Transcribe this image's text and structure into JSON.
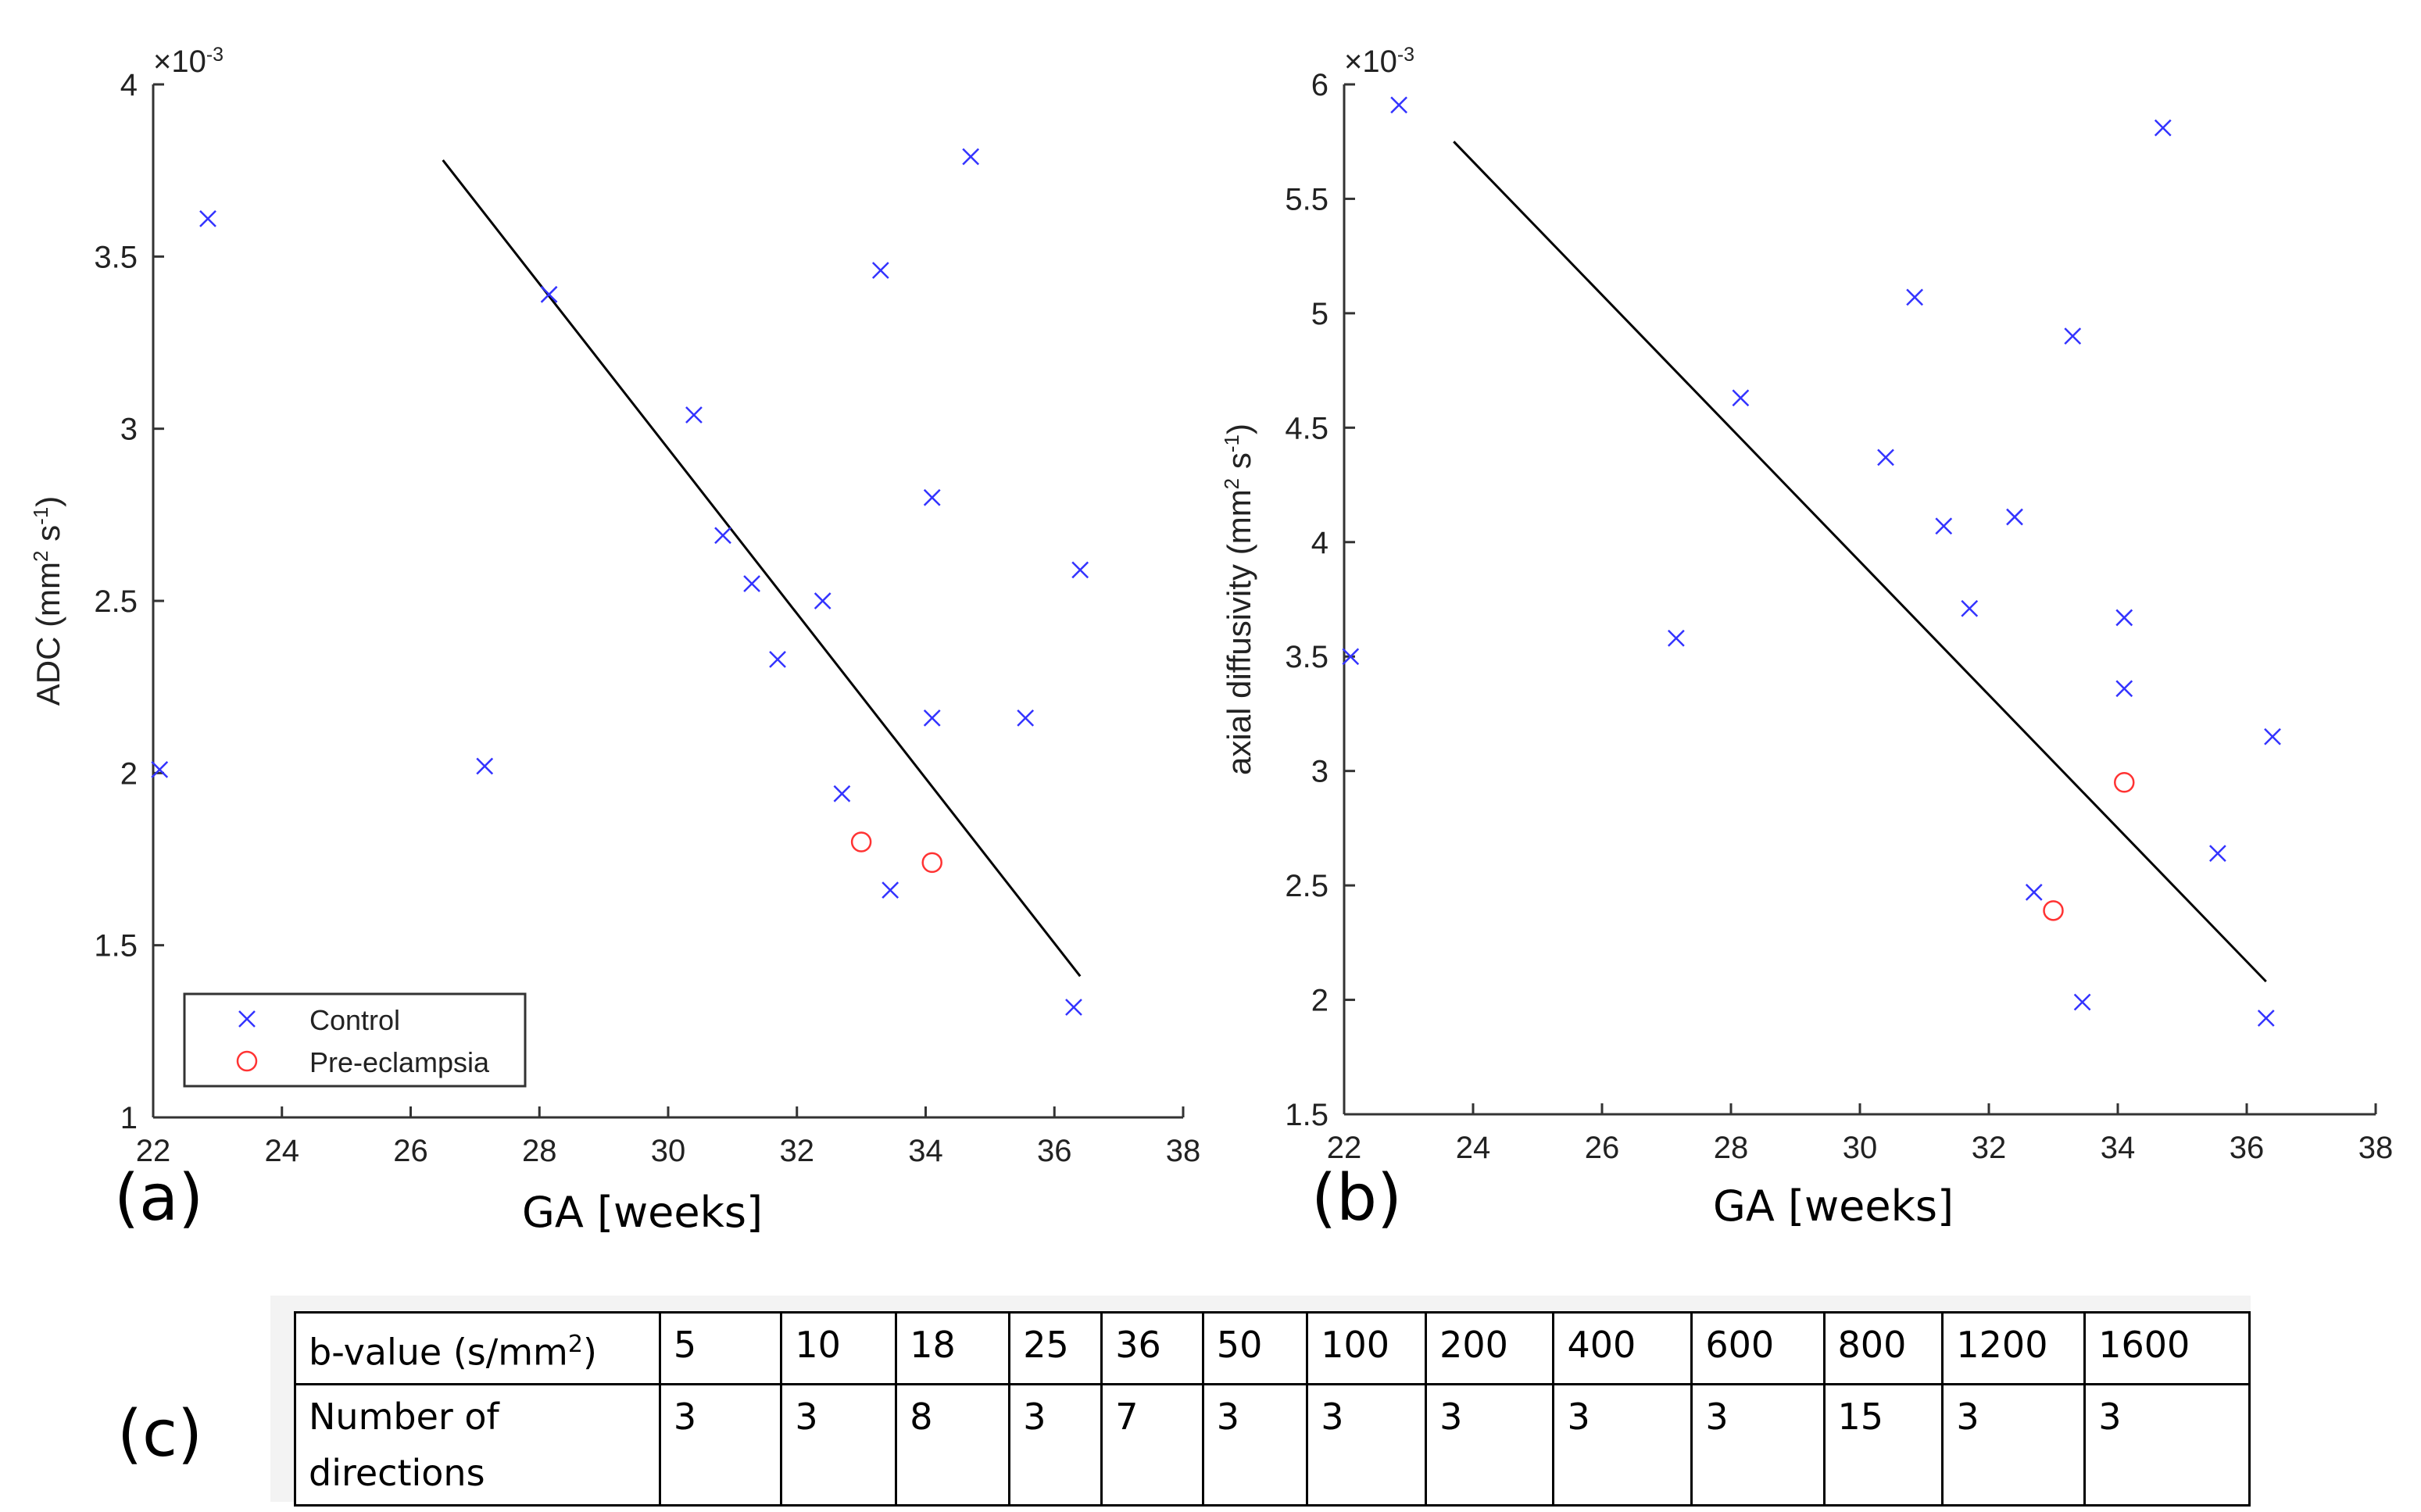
{
  "figure": {
    "label_a": "(a)",
    "label_b": "(b)",
    "label_c": "(c)",
    "xaxis_title": "GA [weeks]"
  },
  "legend": {
    "control": "Control",
    "preeclampsia": "Pre-eclampsia"
  },
  "colors": {
    "control": "#3333ff",
    "preeclampsia": "#ff3333",
    "fit": "#000000"
  },
  "chart_data": [
    {
      "id": "a",
      "type": "scatter",
      "ylabel": "ADC (mm2 s-1)",
      "ylabel_parts": [
        "ADC (mm",
        "2",
        " s",
        "-1",
        ")"
      ],
      "exponent": "×10-3",
      "exponent_parts": [
        "×10",
        "-3"
      ],
      "xlim": [
        22,
        38
      ],
      "ylim": [
        1,
        4
      ],
      "xticks": [
        22,
        24,
        26,
        28,
        30,
        32,
        34,
        36,
        38
      ],
      "yticks": [
        1,
        1.5,
        2,
        2.5,
        3,
        3.5,
        4
      ],
      "ytick_labels": [
        "1",
        "1.5",
        "2",
        "2.5",
        "3",
        "3.5",
        "4"
      ],
      "series": [
        {
          "name": "Control",
          "marker": "x",
          "points": [
            [
              22.1,
              2.01
            ],
            [
              22.85,
              3.61
            ],
            [
              27.15,
              2.02
            ],
            [
              28.15,
              3.39
            ],
            [
              30.4,
              3.04
            ],
            [
              30.85,
              2.69
            ],
            [
              31.3,
              2.55
            ],
            [
              31.7,
              2.33
            ],
            [
              32.4,
              2.5
            ],
            [
              32.7,
              1.94
            ],
            [
              33.3,
              3.46
            ],
            [
              33.45,
              1.66
            ],
            [
              34.1,
              2.8
            ],
            [
              34.1,
              2.16
            ],
            [
              34.7,
              3.79
            ],
            [
              35.55,
              2.16
            ],
            [
              36.3,
              1.32
            ],
            [
              36.4,
              2.59
            ]
          ]
        },
        {
          "name": "Pre-eclampsia",
          "marker": "o",
          "points": [
            [
              33.0,
              1.8
            ],
            [
              34.1,
              1.74
            ]
          ]
        }
      ],
      "fit_line": [
        [
          26.5,
          3.78
        ],
        [
          36.4,
          1.41
        ]
      ],
      "legend_position": "bottom-left"
    },
    {
      "id": "b",
      "type": "scatter",
      "ylabel": "axial diffusivity (mm2 s-1)",
      "ylabel_parts": [
        "axial diffusivity (mm",
        "2",
        " s",
        "-1",
        ")"
      ],
      "exponent": "×10-3",
      "exponent_parts": [
        "×10",
        "-3"
      ],
      "xlim": [
        22,
        38
      ],
      "ylim": [
        1.5,
        6
      ],
      "xticks": [
        22,
        24,
        26,
        28,
        30,
        32,
        34,
        36,
        38
      ],
      "yticks": [
        1.5,
        2,
        2.5,
        3,
        3.5,
        4,
        4.5,
        5,
        5.5,
        6
      ],
      "ytick_labels": [
        "1.5",
        "2",
        "2.5",
        "3",
        "3.5",
        "4",
        "4.5",
        "5",
        "5.5",
        "6"
      ],
      "series": [
        {
          "name": "Control",
          "marker": "x",
          "points": [
            [
              22.1,
              3.5
            ],
            [
              22.85,
              5.91
            ],
            [
              27.15,
              3.58
            ],
            [
              28.15,
              4.63
            ],
            [
              30.4,
              4.37
            ],
            [
              30.85,
              5.07
            ],
            [
              31.3,
              4.07
            ],
            [
              31.7,
              3.71
            ],
            [
              32.4,
              4.11
            ],
            [
              32.7,
              2.47
            ],
            [
              33.3,
              4.9
            ],
            [
              33.45,
              1.99
            ],
            [
              34.1,
              3.67
            ],
            [
              34.1,
              3.36
            ],
            [
              34.7,
              5.81
            ],
            [
              35.55,
              2.64
            ],
            [
              36.3,
              1.92
            ],
            [
              36.4,
              3.15
            ]
          ]
        },
        {
          "name": "Pre-eclampsia",
          "marker": "o",
          "points": [
            [
              33.0,
              2.39
            ],
            [
              34.1,
              2.95
            ]
          ]
        }
      ],
      "fit_line": [
        [
          23.7,
          5.75
        ],
        [
          36.3,
          2.08
        ]
      ]
    },
    {
      "id": "c",
      "type": "table",
      "row_headers": [
        "b-value (s/mm2)",
        "Number of directions"
      ],
      "row_header_parts": [
        "b-value (s/mm",
        "2",
        ")"
      ],
      "row2_header_lines": [
        "Number of",
        "directions"
      ],
      "b_values": [
        "5",
        "10",
        "18",
        "25",
        "36",
        "50",
        "100",
        "200",
        "400",
        "600",
        "800",
        "1200",
        "1600"
      ],
      "directions": [
        "3",
        "3",
        "8",
        "3",
        "7",
        "3",
        "3",
        "3",
        "3",
        "3",
        "15",
        "3",
        "3"
      ]
    }
  ]
}
